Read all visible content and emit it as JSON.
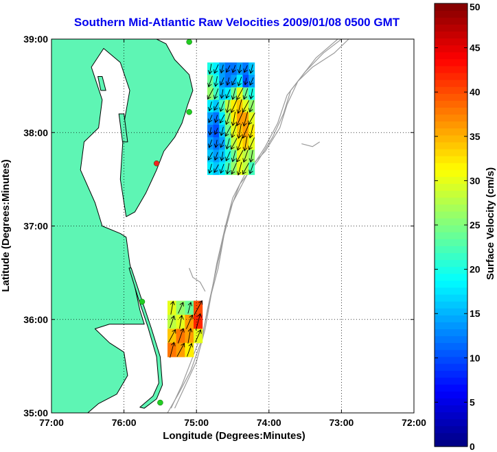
{
  "chart_data": {
    "type": "heatmap",
    "title": "Southern Mid-Atlantic Raw Velocities 2009/01/08 0500 GMT",
    "xlabel": "Longitude (Degrees:Minutes)",
    "ylabel": "Latitude (Degrees:Minutes)",
    "xlim": [
      -77.0,
      -72.0
    ],
    "ylim": [
      35.0,
      39.0
    ],
    "x_ticks": [
      {
        "value": -77.0,
        "label": "77:00"
      },
      {
        "value": -76.0,
        "label": "76:00"
      },
      {
        "value": -75.0,
        "label": "75:00"
      },
      {
        "value": -74.0,
        "label": "74:00"
      },
      {
        "value": -73.0,
        "label": "73:00"
      },
      {
        "value": -72.0,
        "label": "72:00"
      }
    ],
    "y_ticks": [
      {
        "value": 35.0,
        "label": "35:00"
      },
      {
        "value": 36.0,
        "label": "36:00"
      },
      {
        "value": 37.0,
        "label": "37:00"
      },
      {
        "value": 38.0,
        "label": "38:00"
      },
      {
        "value": 39.0,
        "label": "39:00"
      }
    ],
    "grid": "dotted",
    "colorbar": {
      "label": "Surface Velocity (cm/s)",
      "range": [
        0,
        50
      ],
      "ticks": [
        {
          "value": 0,
          "label": "0"
        },
        {
          "value": 5,
          "label": "5"
        },
        {
          "value": 10,
          "label": "10"
        },
        {
          "value": 15,
          "label": "15"
        },
        {
          "value": 20,
          "label": "20"
        },
        {
          "value": 25,
          "label": "25"
        },
        {
          "value": 30,
          "label": "30"
        },
        {
          "value": 35,
          "label": "35"
        },
        {
          "value": 40,
          "label": "40"
        },
        {
          "value": 45,
          "label": "45"
        },
        {
          "value": 50,
          "label": "50"
        }
      ],
      "colormap": "jet"
    },
    "colors": {
      "land": "#5ef5b4",
      "water": "#ffffff",
      "title": "#0000ee",
      "bathymetry": "#9a9a9a",
      "coastline": "#000000"
    },
    "regions": [
      {
        "name": "northern",
        "lon_range": [
          -74.85,
          -74.2
        ],
        "lat_range": [
          37.55,
          38.75
        ],
        "speeds": [
          [
            20,
            18,
            14,
            12,
            12,
            14,
            12,
            16
          ],
          [
            24,
            20,
            14,
            12,
            14,
            18,
            10,
            14
          ],
          [
            26,
            22,
            16,
            18,
            24,
            30,
            24,
            20
          ],
          [
            18,
            16,
            22,
            28,
            32,
            34,
            30,
            26
          ],
          [
            14,
            12,
            18,
            26,
            32,
            36,
            36,
            30
          ],
          [
            12,
            10,
            16,
            24,
            30,
            34,
            36,
            32
          ],
          [
            14,
            12,
            14,
            22,
            28,
            32,
            34,
            30
          ],
          [
            16,
            14,
            16,
            20,
            24,
            30,
            28,
            26
          ],
          [
            18,
            16,
            18,
            22,
            26,
            30,
            28,
            22
          ]
        ],
        "mean_direction": "south-southwest"
      },
      {
        "name": "southern",
        "lon_range": [
          -75.4,
          -74.92
        ],
        "lat_range": [
          35.6,
          36.2
        ],
        "speeds": [
          [
            30,
            26,
            24,
            40
          ],
          [
            28,
            30,
            36,
            42
          ],
          [
            34,
            38,
            36,
            30
          ],
          [
            38,
            36,
            32,
            0
          ]
        ],
        "mean_direction": "north-northeast"
      }
    ],
    "stations": [
      {
        "lon": -75.1,
        "lat": 38.97,
        "color": "#22cc22"
      },
      {
        "lon": -75.1,
        "lat": 38.22,
        "color": "#22cc22"
      },
      {
        "lon": -75.55,
        "lat": 37.67,
        "color": "#ee2222"
      },
      {
        "lon": -75.75,
        "lat": 36.19,
        "color": "#22cc22"
      },
      {
        "lon": -75.5,
        "lat": 35.11,
        "color": "#22cc22"
      }
    ]
  }
}
